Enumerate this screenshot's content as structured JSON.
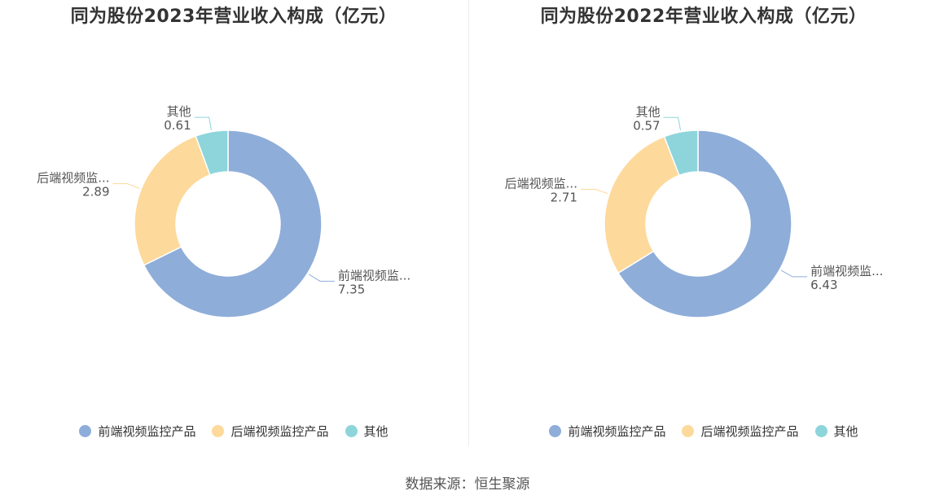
{
  "source": "数据来源：恒生聚源",
  "chart_data": [
    {
      "type": "pie",
      "title": "同为股份2023年营业收入构成（亿元）",
      "categories": [
        "前端视频监控产品",
        "后端视频监控产品",
        "其他"
      ],
      "short_labels": [
        "前端视频监...",
        "后端视频监...",
        "其他"
      ],
      "values": [
        7.35,
        2.89,
        0.61
      ],
      "value_labels": [
        "7.35",
        "2.89",
        "0.61"
      ],
      "colors": [
        "#8eadd9",
        "#fdd99b",
        "#8dd5db"
      ],
      "legend_position": "bottom",
      "donut": true
    },
    {
      "type": "pie",
      "title": "同为股份2022年营业收入构成（亿元）",
      "categories": [
        "前端视频监控产品",
        "后端视频监控产品",
        "其他"
      ],
      "short_labels": [
        "前端视频监...",
        "后端视频监...",
        "其他"
      ],
      "values": [
        6.43,
        2.71,
        0.57
      ],
      "value_labels": [
        "6.43",
        "2.71",
        "0.57"
      ],
      "colors": [
        "#8eadd9",
        "#fdd99b",
        "#8dd5db"
      ],
      "legend_position": "bottom",
      "donut": true
    }
  ]
}
